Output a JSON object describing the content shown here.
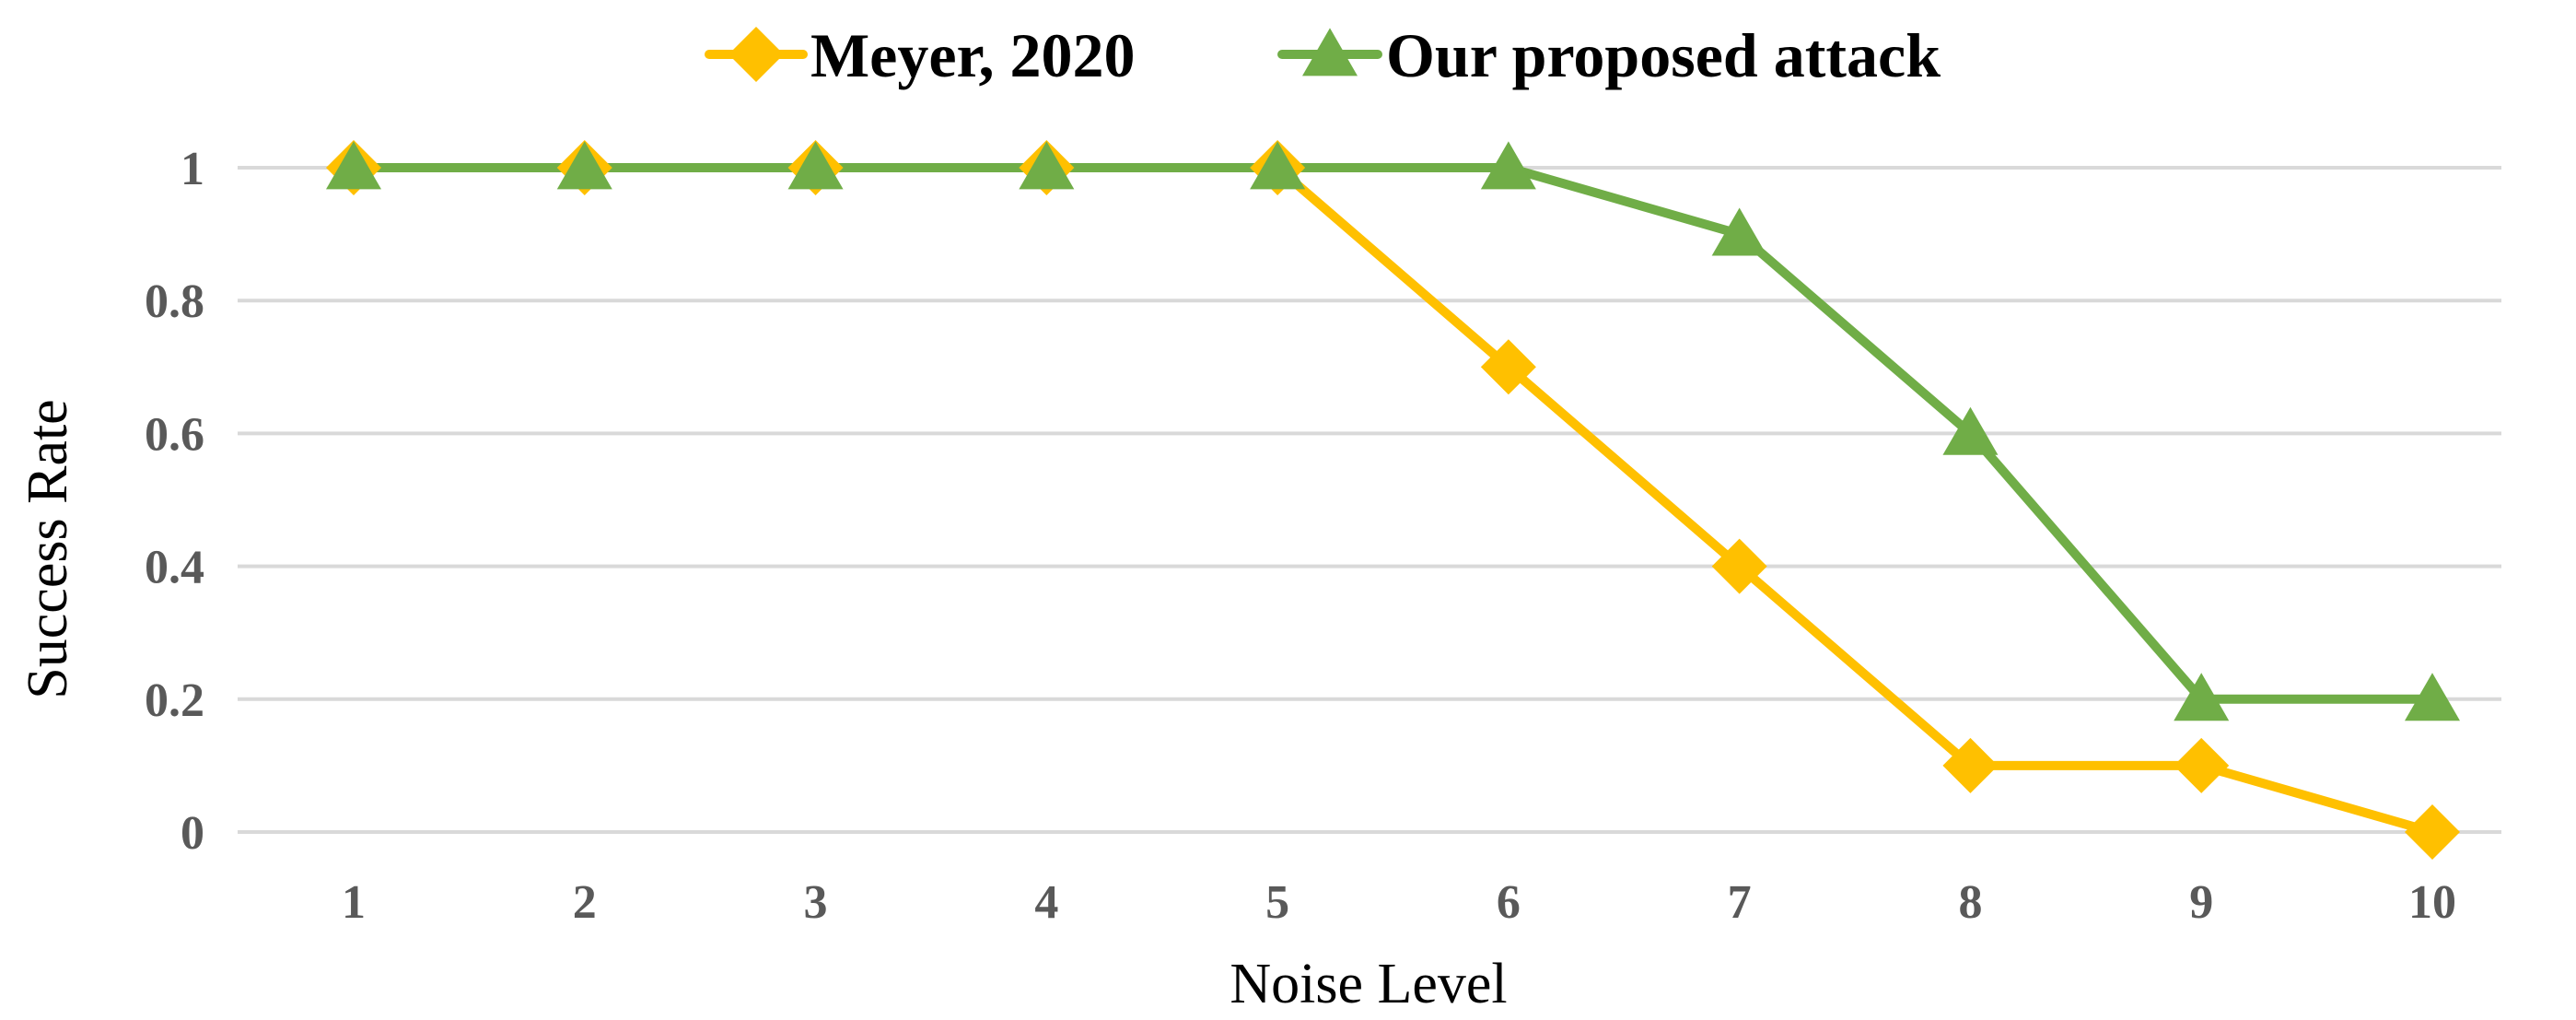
{
  "chart_data": {
    "type": "line",
    "title": "",
    "xlabel": "Noise Level",
    "ylabel": "Success Rate",
    "x": [
      1,
      2,
      3,
      4,
      5,
      6,
      7,
      8,
      9,
      10
    ],
    "x_tick_labels": [
      "1",
      "2",
      "3",
      "4",
      "5",
      "6",
      "7",
      "8",
      "9",
      "10"
    ],
    "ylim": [
      0,
      1
    ],
    "y_ticks": [
      0,
      0.2,
      0.4,
      0.6,
      0.8,
      1
    ],
    "y_tick_labels": [
      "0",
      "0.2",
      "0.4",
      "0.6",
      "0.8",
      "1"
    ],
    "grid": "horizontal",
    "legend_position": "top",
    "series": [
      {
        "name": "Meyer, 2020",
        "color": "#FFC000",
        "marker": "diamond",
        "values": [
          1,
          1,
          1,
          1,
          1,
          0.7,
          0.4,
          0.1,
          0.1,
          0
        ]
      },
      {
        "name": "Our proposed attack",
        "color": "#70AD47",
        "marker": "triangle",
        "values": [
          1,
          1,
          1,
          1,
          1,
          1,
          0.9,
          0.6,
          0.2,
          0.2
        ]
      }
    ]
  }
}
